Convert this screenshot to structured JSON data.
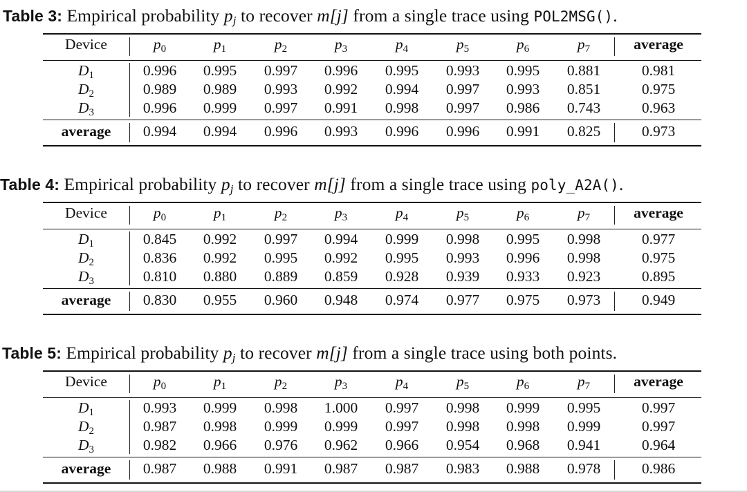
{
  "tables": [
    {
      "caption": {
        "label": "Table 3:",
        "pre": " Empirical probability ",
        "sym": "p",
        "sub": "j",
        "mid": " to recover ",
        "m_text": "m[j]",
        "post": " from a single trace using ",
        "code": "POL2MSG()",
        "end": "."
      },
      "header": {
        "device": "Device",
        "p_letter": "p",
        "p_subs": [
          "0",
          "1",
          "2",
          "3",
          "4",
          "5",
          "6",
          "7"
        ],
        "average": "average"
      },
      "rows": [
        {
          "device": "D",
          "sub": "1",
          "values": [
            "0.996",
            "0.995",
            "0.997",
            "0.996",
            "0.995",
            "0.993",
            "0.995",
            "0.881"
          ],
          "average": "0.981"
        },
        {
          "device": "D",
          "sub": "2",
          "values": [
            "0.989",
            "0.989",
            "0.993",
            "0.992",
            "0.994",
            "0.997",
            "0.993",
            "0.851"
          ],
          "average": "0.975"
        },
        {
          "device": "D",
          "sub": "3",
          "values": [
            "0.996",
            "0.999",
            "0.997",
            "0.991",
            "0.998",
            "0.997",
            "0.986",
            "0.743"
          ],
          "average": "0.963"
        }
      ],
      "average_row": {
        "label": "average",
        "values": [
          "0.994",
          "0.994",
          "0.996",
          "0.993",
          "0.996",
          "0.996",
          "0.991",
          "0.825"
        ],
        "average": "0.973"
      }
    },
    {
      "caption": {
        "label": "Table 4:",
        "pre": " Empirical probability ",
        "sym": "p",
        "sub": "j",
        "mid": " to recover ",
        "m_text": "m[j]",
        "post": " from a single trace using ",
        "code": "poly_A2A()",
        "end": "."
      },
      "header": {
        "device": "Device",
        "p_letter": "p",
        "p_subs": [
          "0",
          "1",
          "2",
          "3",
          "4",
          "5",
          "6",
          "7"
        ],
        "average": "average"
      },
      "rows": [
        {
          "device": "D",
          "sub": "1",
          "values": [
            "0.845",
            "0.992",
            "0.997",
            "0.994",
            "0.999",
            "0.998",
            "0.995",
            "0.998"
          ],
          "average": "0.977"
        },
        {
          "device": "D",
          "sub": "2",
          "values": [
            "0.836",
            "0.992",
            "0.995",
            "0.992",
            "0.995",
            "0.993",
            "0.996",
            "0.998"
          ],
          "average": "0.975"
        },
        {
          "device": "D",
          "sub": "3",
          "values": [
            "0.810",
            "0.880",
            "0.889",
            "0.859",
            "0.928",
            "0.939",
            "0.933",
            "0.923"
          ],
          "average": "0.895"
        }
      ],
      "average_row": {
        "label": "average",
        "values": [
          "0.830",
          "0.955",
          "0.960",
          "0.948",
          "0.974",
          "0.977",
          "0.975",
          "0.973"
        ],
        "average": "0.949"
      }
    },
    {
      "caption": {
        "label": "Table 5:",
        "pre": " Empirical probability ",
        "sym": "p",
        "sub": "j",
        "mid": " to recover ",
        "m_text": "m[j]",
        "post": " from a single trace using both points.",
        "code": "",
        "end": ""
      },
      "header": {
        "device": "Device",
        "p_letter": "p",
        "p_subs": [
          "0",
          "1",
          "2",
          "3",
          "4",
          "5",
          "6",
          "7"
        ],
        "average": "average"
      },
      "rows": [
        {
          "device": "D",
          "sub": "1",
          "values": [
            "0.993",
            "0.999",
            "0.998",
            "1.000",
            "0.997",
            "0.998",
            "0.999",
            "0.995"
          ],
          "average": "0.997"
        },
        {
          "device": "D",
          "sub": "2",
          "values": [
            "0.987",
            "0.998",
            "0.999",
            "0.999",
            "0.997",
            "0.998",
            "0.998",
            "0.999"
          ],
          "average": "0.997"
        },
        {
          "device": "D",
          "sub": "3",
          "values": [
            "0.982",
            "0.966",
            "0.976",
            "0.962",
            "0.966",
            "0.954",
            "0.968",
            "0.941"
          ],
          "average": "0.964"
        }
      ],
      "average_row": {
        "label": "average",
        "values": [
          "0.987",
          "0.988",
          "0.991",
          "0.987",
          "0.987",
          "0.983",
          "0.988",
          "0.978"
        ],
        "average": "0.986"
      }
    }
  ]
}
